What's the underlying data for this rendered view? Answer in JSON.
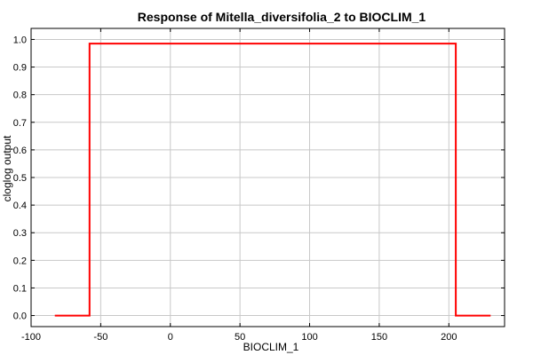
{
  "chart_data": {
    "type": "line",
    "title": "Response of Mitella_diversifolia_2 to BIOCLIM_1",
    "xlabel": "BIOCLIM_1",
    "ylabel": "cloglog output",
    "xlim": [
      -100,
      240
    ],
    "ylim": [
      -0.04,
      1.04
    ],
    "x_ticks": [
      -100,
      -50,
      0,
      50,
      100,
      150,
      200
    ],
    "y_ticks": [
      "0.0",
      "0.1",
      "0.2",
      "0.3",
      "0.4",
      "0.5",
      "0.6",
      "0.7",
      "0.8",
      "0.9",
      "1.0"
    ],
    "grid": true,
    "series": [
      {
        "color": "#ff0000",
        "x": [
          -83,
          -58,
          -58,
          205,
          205,
          230
        ],
        "y": [
          0.0,
          0.0,
          0.985,
          0.985,
          0.0,
          0.0
        ]
      }
    ]
  }
}
